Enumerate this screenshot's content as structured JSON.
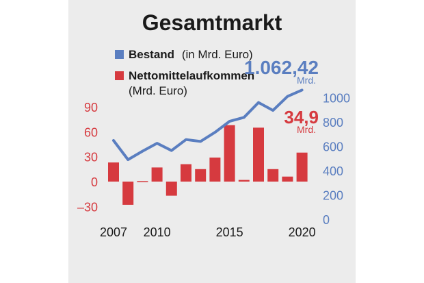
{
  "colors": {
    "panel_background": "#ececec",
    "bar": "#d63a3f",
    "line": "#5a7ec0",
    "left_axis_text": "#d63a3f",
    "right_axis_text": "#5a7ec0",
    "title_text": "#1a1a1a"
  },
  "chart_data": {
    "type": "bar+line",
    "title": "Gesamtmarkt",
    "legend": [
      {
        "name": "Bestand",
        "note": "(in Mrd. Euro)",
        "color": "#5a7ec0",
        "marker": "square"
      },
      {
        "name": "Nettomittelaufkommen",
        "note": "(Mrd. Euro)",
        "color": "#d63a3f",
        "marker": "square"
      }
    ],
    "legend_position": "top-left",
    "x": [
      2007,
      2008,
      2009,
      2010,
      2011,
      2012,
      2013,
      2014,
      2015,
      2016,
      2017,
      2018,
      2019,
      2020
    ],
    "x_tick_labels": [
      "2007",
      "2010",
      "2015",
      "2020"
    ],
    "x_tick_years": [
      2007,
      2010,
      2015,
      2020
    ],
    "series": [
      {
        "name": "Nettomittelaufkommen",
        "type": "bar",
        "axis": "left",
        "values": [
          23,
          -28,
          -1,
          17,
          -17,
          21,
          15,
          29,
          68,
          2,
          65,
          15,
          6,
          34.9
        ]
      },
      {
        "name": "Bestand",
        "type": "line",
        "axis": "right",
        "values": [
          648,
          490,
          560,
          625,
          565,
          655,
          640,
          715,
          805,
          838,
          960,
          895,
          1010,
          1062.42
        ]
      }
    ],
    "left_axis": {
      "ylim": [
        -30,
        100
      ],
      "ticks": [
        -30,
        0,
        30,
        60,
        90
      ],
      "tick_labels": [
        "–30",
        "0",
        "30",
        "60",
        "90"
      ]
    },
    "right_axis": {
      "ylim": [
        0,
        1200
      ],
      "ticks": [
        0,
        200,
        400,
        600,
        800,
        1000
      ],
      "tick_labels": [
        "0",
        "200",
        "400",
        "600",
        "800",
        "1000"
      ]
    },
    "annotations": [
      {
        "text": "1.062,42",
        "unit": "Mrd.",
        "series": "Bestand",
        "x": 2020
      },
      {
        "text": "34,9",
        "unit": "Mrd.",
        "series": "Nettomittelaufkommen",
        "x": 2020
      }
    ],
    "grid": false
  }
}
